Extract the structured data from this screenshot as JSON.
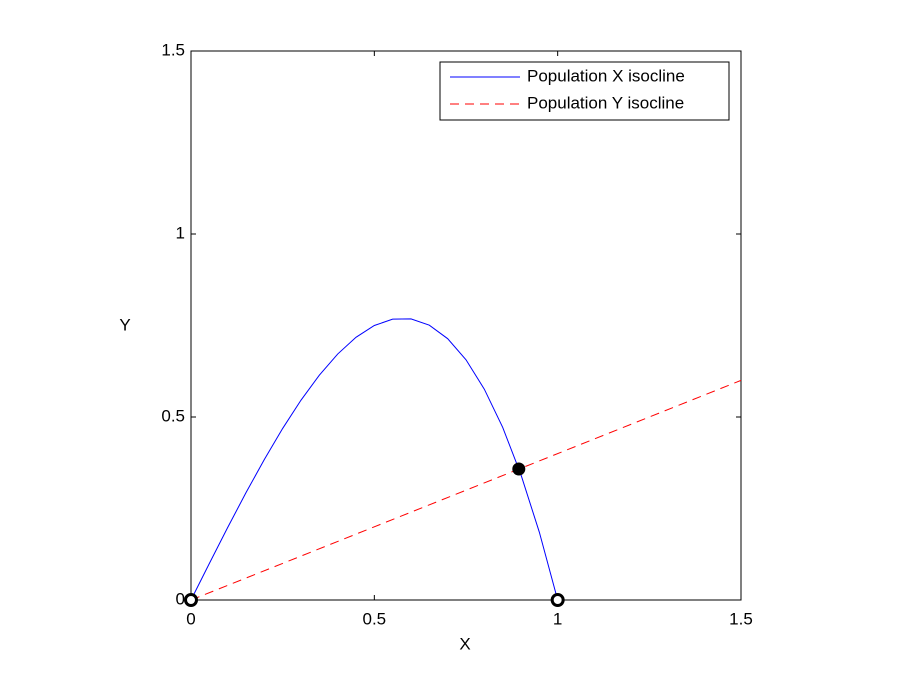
{
  "chart_data": {
    "type": "line",
    "xlabel": "X",
    "ylabel": "Y",
    "xlim": [
      0,
      1.5
    ],
    "ylim": [
      0,
      1.5
    ],
    "xticks": [
      0,
      0.5,
      1,
      1.5
    ],
    "yticks": [
      0,
      0.5,
      1,
      1.5
    ],
    "grid": false,
    "legend": "upper right",
    "series": [
      {
        "name": "Population X isocline",
        "color": "#0000ff",
        "dash": "solid",
        "x": [
          0,
          0.05,
          0.1,
          0.15,
          0.2,
          0.25,
          0.3,
          0.35,
          0.4,
          0.45,
          0.5,
          0.55,
          0.6,
          0.65,
          0.7,
          0.75,
          0.8,
          0.85,
          0.9,
          0.95,
          1
        ],
        "values": [
          0,
          0.0998,
          0.198,
          0.2933,
          0.384,
          0.4688,
          0.546,
          0.6143,
          0.672,
          0.7178,
          0.75,
          0.7673,
          0.768,
          0.7508,
          0.714,
          0.6563,
          0.576,
          0.4718,
          0.342,
          0.1853,
          0
        ]
      },
      {
        "name": "Population Y isocline",
        "color": "#ff0000",
        "dash": "dashed",
        "x": [
          0,
          1.5
        ],
        "values": [
          0,
          0.6
        ]
      }
    ],
    "equilibria": [
      {
        "x": 0,
        "y": 0,
        "filled": false
      },
      {
        "x": 1,
        "y": 0,
        "filled": false
      },
      {
        "x": 0.894,
        "y": 0.358,
        "filled": true
      }
    ]
  }
}
